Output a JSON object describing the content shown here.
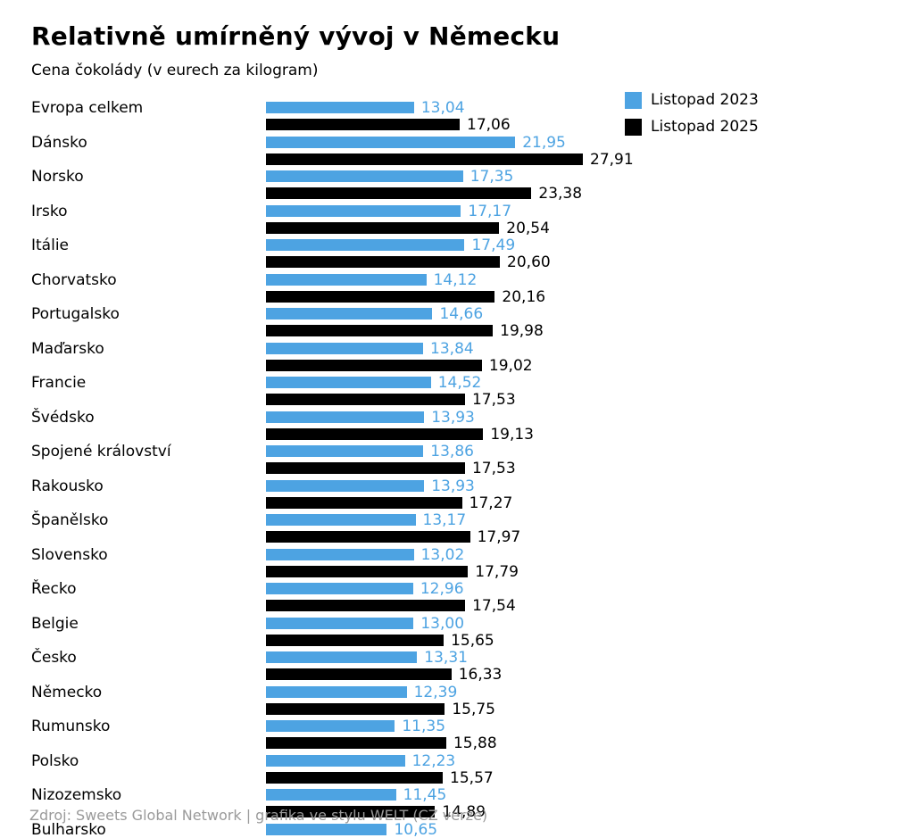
{
  "title": "Relativně umírněný vývoj v Německu",
  "subtitle": "Cena čokolády (v eurech za kilogram)",
  "source_note": "Zdroj: Sweets Global Network | grafika ve stylu WELT (CZ verze)",
  "legend": {
    "items": [
      {
        "label": "Listopad 2023"
      },
      {
        "label": "Listopad 2025"
      }
    ]
  },
  "colors": {
    "series_2023": "#4da3e2",
    "series_2025": "#000000",
    "source_text": "#9a9a9a",
    "background": "#ffffff"
  },
  "chart_data": {
    "type": "bar",
    "orientation": "horizontal",
    "grouped": true,
    "grid": false,
    "legend_position": "top-right",
    "value_label_decimal": "comma",
    "xlim": [
      0,
      28.5
    ],
    "title": "Relativně umírněný vývoj v Německu",
    "subtitle": "Cena čokolády (v eurech za kilogram)",
    "categories": [
      "Evropa celkem",
      "Dánsko",
      "Norsko",
      "Irsko",
      "Itálie",
      "Chorvatsko",
      "Portugalsko",
      "Maďarsko",
      "Francie",
      "Švédsko",
      "Spojené království",
      "Rakousko",
      "Španělsko",
      "Slovensko",
      "Řecko",
      "Belgie",
      "Česko",
      "Německo",
      "Rumunsko",
      "Polsko",
      "Nizozemsko",
      "Bulharsko"
    ],
    "series": [
      {
        "name": "Listopad 2023",
        "color": "#4da3e2",
        "values": [
          13.04,
          21.95,
          17.35,
          17.17,
          17.49,
          14.12,
          14.66,
          13.84,
          14.52,
          13.93,
          13.86,
          13.93,
          13.17,
          13.02,
          12.96,
          13.0,
          13.31,
          12.39,
          11.35,
          12.23,
          11.45,
          10.65
        ]
      },
      {
        "name": "Listopad 2025",
        "color": "#000000",
        "values": [
          17.06,
          27.91,
          23.38,
          20.54,
          20.6,
          20.16,
          19.98,
          19.02,
          17.53,
          19.13,
          17.53,
          17.27,
          17.97,
          17.79,
          17.54,
          15.65,
          16.33,
          15.75,
          15.88,
          15.57,
          14.89,
          null
        ]
      }
    ]
  }
}
